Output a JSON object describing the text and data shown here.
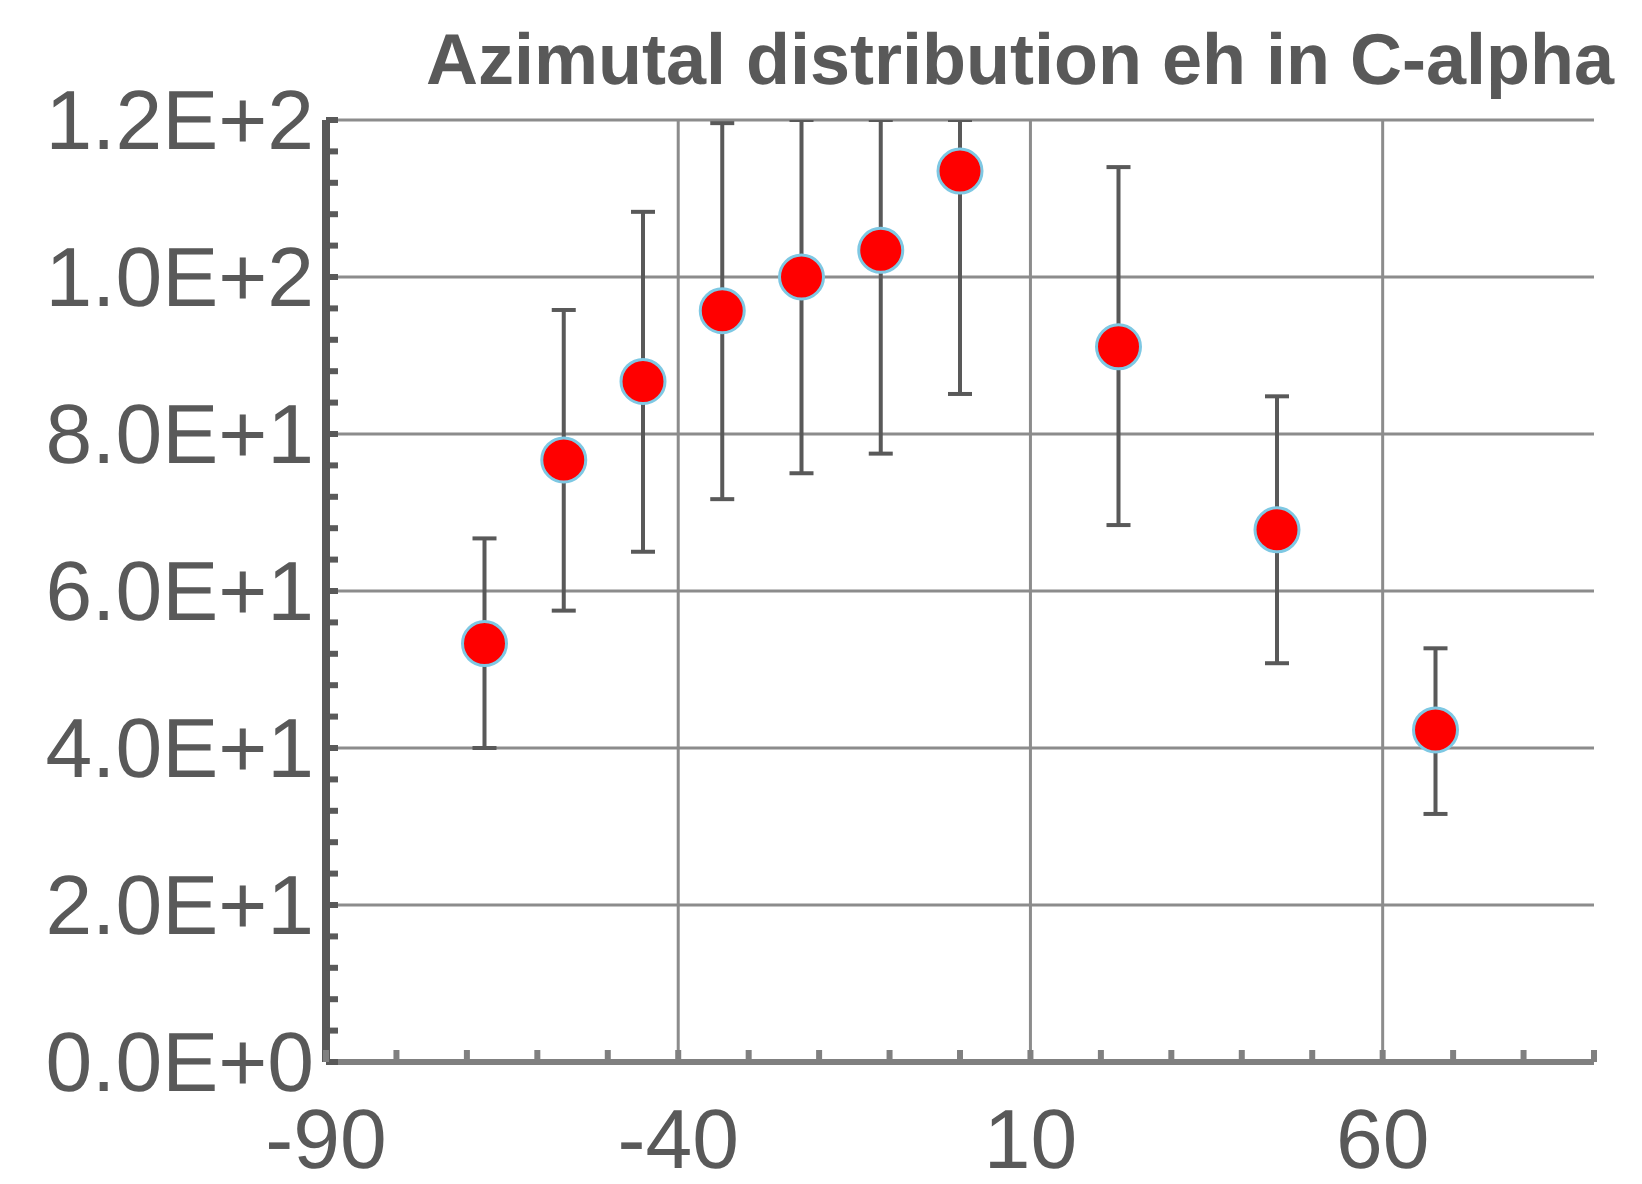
{
  "chart_data": {
    "type": "scatter",
    "title": "Azimutal distribution eh in C-alpha",
    "x": [
      -67.5,
      -56.25,
      -45,
      -33.75,
      -22.5,
      -11.25,
      0,
      22.5,
      45,
      67.5
    ],
    "series": [
      {
        "color": "#ff0000",
        "values": [
          53.3,
          76.7,
          86.7,
          95.7,
          100.0,
          103.4,
          113.5,
          91.1,
          67.8,
          42.3
        ],
        "errors": [
          [
            40.0,
            66.7
          ],
          [
            57.5,
            95.8
          ],
          [
            65.0,
            108.3
          ],
          [
            71.7,
            119.6
          ],
          [
            75.0,
            120
          ],
          [
            77.5,
            120
          ],
          [
            85.1,
            120
          ],
          [
            68.4,
            114.0
          ],
          [
            50.8,
            84.8
          ],
          [
            31.6,
            52.7
          ]
        ]
      }
    ],
    "marker": "circle",
    "grid": true,
    "xlim": [
      -90,
      90
    ],
    "xticks": [
      -90,
      {
        "value": -80,
        "label": null
      },
      {
        "value": -70,
        "label": null
      },
      {
        "value": -60,
        "label": null
      },
      {
        "value": -50,
        "label": null
      },
      -40,
      {
        "value": -30,
        "label": null
      },
      {
        "value": -20,
        "label": null
      },
      {
        "value": -10,
        "label": null
      },
      {
        "value": 0,
        "label": null
      },
      10,
      {
        "value": 20,
        "label": null
      },
      {
        "value": 30,
        "label": null
      },
      {
        "value": 40,
        "label": null
      },
      {
        "value": 50,
        "label": null
      },
      60,
      {
        "value": 70,
        "label": null
      },
      {
        "value": 80,
        "label": null
      },
      {
        "value": 90,
        "label": null
      }
    ],
    "ylim": [
      0,
      120
    ],
    "yticks": [
      {
        "value": 0,
        "label": "0.0E+0"
      },
      {
        "value": 4,
        "label": null
      },
      {
        "value": 8,
        "label": null
      },
      {
        "value": 12,
        "label": null
      },
      {
        "value": 16,
        "label": null
      },
      {
        "value": 20,
        "label": "2.0E+1"
      },
      {
        "value": 24,
        "label": null
      },
      {
        "value": 28,
        "label": null
      },
      {
        "value": 32,
        "label": null
      },
      {
        "value": 36,
        "label": null
      },
      {
        "value": 40,
        "label": "4.0E+1"
      },
      {
        "value": 44,
        "label": null
      },
      {
        "value": 48,
        "label": null
      },
      {
        "value": 52,
        "label": null
      },
      {
        "value": 56,
        "label": null
      },
      {
        "value": 60,
        "label": "6.0E+1"
      },
      {
        "value": 64,
        "label": null
      },
      {
        "value": 68,
        "label": null
      },
      {
        "value": 72,
        "label": null
      },
      {
        "value": 76,
        "label": null
      },
      {
        "value": 80,
        "label": "8.0E+1"
      },
      {
        "value": 84,
        "label": null
      },
      {
        "value": 88,
        "label": null
      },
      {
        "value": 92,
        "label": null
      },
      {
        "value": 96,
        "label": null
      },
      {
        "value": 100,
        "label": "1.0E+2"
      },
      {
        "value": 104,
        "label": null
      },
      {
        "value": 108,
        "label": null
      },
      {
        "value": 112,
        "label": null
      },
      {
        "value": 116,
        "label": null
      },
      {
        "value": 120,
        "label": "1.2E+2"
      }
    ]
  }
}
